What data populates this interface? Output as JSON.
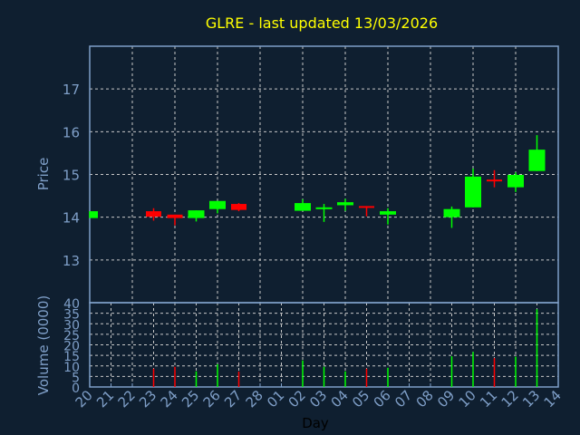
{
  "chart_data": {
    "type": "candlestick",
    "title": "GLRE - last updated 13/03/2026",
    "xlabel": "Day",
    "ylabel": "Price",
    "volume_label": "Volume (0000)",
    "x_tick_labels": [
      "20",
      "21",
      "22",
      "23",
      "24",
      "25",
      "26",
      "27",
      "28",
      "01",
      "02",
      "03",
      "04",
      "05",
      "06",
      "07",
      "08",
      "09",
      "10",
      "11",
      "12",
      "13",
      "14"
    ],
    "price_ticks": [
      13,
      14,
      15,
      16,
      17
    ],
    "price_ylim": [
      12,
      18
    ],
    "volume_ticks": [
      0,
      5,
      10,
      15,
      20,
      25,
      30,
      35,
      40
    ],
    "volume_ylim": [
      0,
      40
    ],
    "grid": true,
    "colors": {
      "up": "#00ff00",
      "down": "#ff0000",
      "background": "#0f1f30",
      "title": "#ffff00",
      "axis": "#7f9fc8"
    },
    "candles": [
      {
        "day": "20",
        "open": 13.98,
        "high": 14.14,
        "low": 13.98,
        "close": 14.14
      },
      {
        "day": "23",
        "open": 14.14,
        "high": 14.21,
        "low": 13.92,
        "close": 14.01,
        "volume": 8.7
      },
      {
        "day": "24",
        "open": 14.06,
        "high": 14.06,
        "low": 13.81,
        "close": 13.98,
        "volume": 9.6
      },
      {
        "day": "25",
        "open": 13.98,
        "high": 14.16,
        "low": 13.9,
        "close": 14.16,
        "volume": 7.4
      },
      {
        "day": "26",
        "open": 14.19,
        "high": 14.38,
        "low": 14.09,
        "close": 14.38,
        "volume": 10.8
      },
      {
        "day": "27",
        "open": 14.31,
        "high": 14.33,
        "low": 14.14,
        "close": 14.17,
        "volume": 7.3
      },
      {
        "day": "02",
        "open": 14.15,
        "high": 14.42,
        "low": 14.15,
        "close": 14.33,
        "volume": 12.6
      },
      {
        "day": "03",
        "open": 14.19,
        "high": 14.31,
        "low": 13.89,
        "close": 14.23,
        "volume": 9.6
      },
      {
        "day": "04",
        "open": 14.28,
        "high": 14.43,
        "low": 14.15,
        "close": 14.35,
        "volume": 7.4
      },
      {
        "day": "05",
        "open": 14.26,
        "high": 14.26,
        "low": 14.02,
        "close": 14.22,
        "volume": 8.7
      },
      {
        "day": "06",
        "open": 14.06,
        "high": 14.21,
        "low": 13.83,
        "close": 14.14,
        "volume": 9.1
      },
      {
        "day": "09",
        "open": 14.0,
        "high": 14.25,
        "low": 13.75,
        "close": 14.19,
        "volume": 14.6
      },
      {
        "day": "10",
        "open": 14.23,
        "high": 15.14,
        "low": 14.23,
        "close": 14.95,
        "volume": 16.6
      },
      {
        "day": "11",
        "open": 14.88,
        "high": 15.1,
        "low": 14.7,
        "close": 14.85,
        "volume": 13.7
      },
      {
        "day": "12",
        "open": 14.7,
        "high": 15.05,
        "low": 14.59,
        "close": 14.99,
        "volume": 14.4
      },
      {
        "day": "13",
        "open": 15.08,
        "high": 15.92,
        "low": 15.08,
        "close": 15.58,
        "volume": 36.9
      }
    ]
  }
}
